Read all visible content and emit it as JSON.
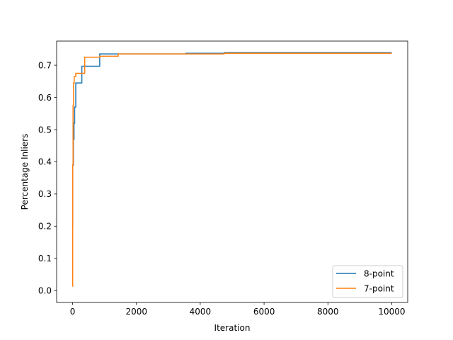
{
  "chart_data": {
    "type": "line",
    "title": "",
    "xlabel": "Iteration",
    "ylabel": "Percentage Inliers",
    "xlim": [
      -500,
      10500
    ],
    "ylim": [
      -0.037,
      0.775
    ],
    "xticks": [
      0,
      2000,
      4000,
      6000,
      8000,
      10000
    ],
    "xtick_labels": [
      "0",
      "2000",
      "4000",
      "6000",
      "8000",
      "10000"
    ],
    "yticks": [
      0.0,
      0.1,
      0.2,
      0.3,
      0.4,
      0.5,
      0.6,
      0.7
    ],
    "ytick_labels": [
      "0.0",
      "0.1",
      "0.2",
      "0.3",
      "0.4",
      "0.5",
      "0.6",
      "0.7"
    ],
    "grid": false,
    "legend_position": "bottom-right",
    "series": [
      {
        "name": "8-point",
        "color": "#1f77b4",
        "step": true,
        "x": [
          0,
          5,
          25,
          45,
          65,
          100,
          160,
          290,
          850,
          1300,
          3550,
          4750,
          10000
        ],
        "y": [
          0.2,
          0.39,
          0.47,
          0.52,
          0.57,
          0.645,
          0.645,
          0.697,
          0.735,
          0.735,
          0.737,
          0.739,
          0.739
        ]
      },
      {
        "name": "7-point",
        "color": "#ff7f0e",
        "step": true,
        "x": [
          0,
          3,
          15,
          30,
          50,
          100,
          300,
          380,
          850,
          1430,
          4750,
          10000
        ],
        "y": [
          0.013,
          0.39,
          0.575,
          0.645,
          0.665,
          0.675,
          0.675,
          0.725,
          0.728,
          0.735,
          0.737,
          0.737
        ]
      }
    ]
  }
}
